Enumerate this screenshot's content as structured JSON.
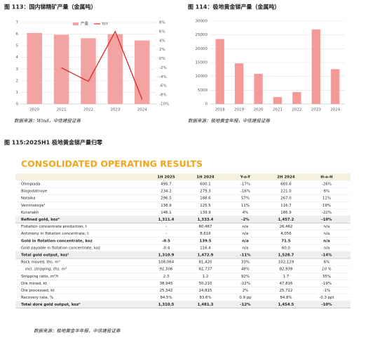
{
  "chart_data": [
    {
      "type": "bar",
      "title": "图 113：国内锑精矿产量（金属吨）",
      "source": "数据来源：Wind，中信建投证券",
      "categories": [
        "2020",
        "2021",
        "2022",
        "2023",
        "2024"
      ],
      "series": [
        {
          "name": "产量",
          "color": "#f4a3a3",
          "values": [
            6.1,
            5.95,
            5.65,
            6.0,
            5.45
          ]
        },
        {
          "name": "YoY",
          "color": "#d9262a",
          "axis": "y2",
          "type": "line",
          "values": [
            null,
            -2,
            -5,
            6,
            -9
          ]
        }
      ],
      "ylim": [
        0,
        7
      ],
      "yticks": [
        0,
        1,
        2,
        3,
        4,
        5,
        6,
        7
      ],
      "y2lim": [
        -10,
        8
      ],
      "y2ticks": [
        {
          "value": -10,
          "label": "-10%"
        },
        {
          "value": -8,
          "label": "-8%"
        },
        {
          "value": -6,
          "label": "-6%"
        },
        {
          "value": -4,
          "label": "-4%"
        },
        {
          "value": -2,
          "label": "-2%"
        },
        {
          "value": 0,
          "label": "0%"
        },
        {
          "value": 2,
          "label": "2%"
        },
        {
          "value": 4,
          "label": "4%"
        },
        {
          "value": 6,
          "label": "6%"
        },
        {
          "value": 8,
          "label": "8%"
        }
      ],
      "grid": true,
      "legend": "top"
    },
    {
      "type": "bar",
      "title": "图 114：极地黄金锑产量（金属吨）",
      "source": "数据来源：极地黄金年报，中信建投证券",
      "categories": [
        "2018",
        "2019",
        "2020",
        "2021",
        "2022",
        "2023",
        "2024"
      ],
      "values": [
        23500,
        14700,
        10900,
        2500,
        4300,
        27000,
        12600
      ],
      "color": "#f39a98",
      "ylim": [
        0,
        30000
      ],
      "yticks": [
        0,
        5000,
        10000,
        15000,
        20000,
        25000,
        30000
      ],
      "grid": true
    }
  ],
  "figure": {
    "title": "图 115:2025H1 极地黄金锑产量归零",
    "source": "数据来源：极地黄金半年报，中信建投证券"
  },
  "table": {
    "heading": "CONSOLIDATED OPERATING RESULTS",
    "columns": [
      "1H 2025",
      "1H 2024",
      "Y-o-Y",
      "2H 2024",
      "H-o-H"
    ],
    "rows": [
      {
        "label": "Olimpiada",
        "cells": [
          "495.7",
          "600.1",
          "-17%",
          "665.6",
          "-26%"
        ]
      },
      {
        "label": "Blagodatnoye",
        "cells": [
          "234.2",
          "279.3",
          "-16%",
          "221.0",
          "6%"
        ]
      },
      {
        "label": "Natalka",
        "cells": [
          "296.5",
          "188.6",
          "57%",
          "267.0",
          "11%"
        ]
      },
      {
        "label": "Verninskoye¹",
        "cells": [
          "138.9",
          "125.5",
          "11%",
          "116.7",
          "19%"
        ]
      },
      {
        "label": "Kuranakh",
        "cells": [
          "146.1",
          "139.9",
          "4%",
          "186.9",
          "-22%"
        ]
      },
      {
        "label": "Refined gold, koz²",
        "cells": [
          "1,311.4",
          "1,333.4",
          "-2%",
          "1,457.2",
          "-10%"
        ]
      },
      {
        "label": "Flotation concentrate production, t",
        "cells": [
          "-",
          "60,467",
          "n/a",
          "26,462",
          "n/a"
        ]
      },
      {
        "label": "Antimony in flotation concentrate, t",
        "cells": [
          "-",
          "8,616",
          "n/a",
          "4,056",
          "n/a"
        ]
      },
      {
        "label": "Gold in flotation concentrate, koz",
        "cells": [
          "-0.5",
          "139.5",
          "n/a",
          "71.5",
          "n/a"
        ]
      },
      {
        "label": "Gold payable in flotation concentrate, koz",
        "cells": [
          "-0.4",
          "116.4",
          "n/a",
          "60.0",
          "n/a"
        ]
      },
      {
        "label": "Total gold output, koz¹",
        "cells": [
          "1,310.9",
          "1,472.9",
          "-11%",
          "1,528.7",
          "-14%"
        ]
      },
      {
        "label": "Rock moved, ths. m³",
        "cells": [
          "108,064",
          "81,420",
          "33%",
          "102,129",
          "6%"
        ]
      },
      {
        "label": "incl. stripping, ths. m³",
        "cells": [
          "91,506",
          "61,737",
          "48%",
          "82,939",
          "10 %"
        ]
      },
      {
        "label": "Stripping ratio, m³/t",
        "cells": [
          "2.3",
          "1.2",
          "92%",
          "1.7",
          "35%"
        ]
      },
      {
        "label": "Ore mined, kt",
        "cells": [
          "38,945",
          "50,210",
          "-22%",
          "47,816",
          "-19%"
        ]
      },
      {
        "label": "Ore processed, kt",
        "cells": [
          "25,342",
          "24,815",
          "2%",
          "25,712",
          "-1%"
        ]
      },
      {
        "label": "Recovery rate, %",
        "cells": [
          "84.5%",
          "83.6%",
          "0.9 pp",
          "84.8%",
          "-0.3 ppt"
        ]
      },
      {
        "label": "Total doré gold output, koz²",
        "cells": [
          "1,310.5",
          "1,481.3",
          "-12%",
          "1,454.5",
          "-10%"
        ]
      }
    ]
  }
}
